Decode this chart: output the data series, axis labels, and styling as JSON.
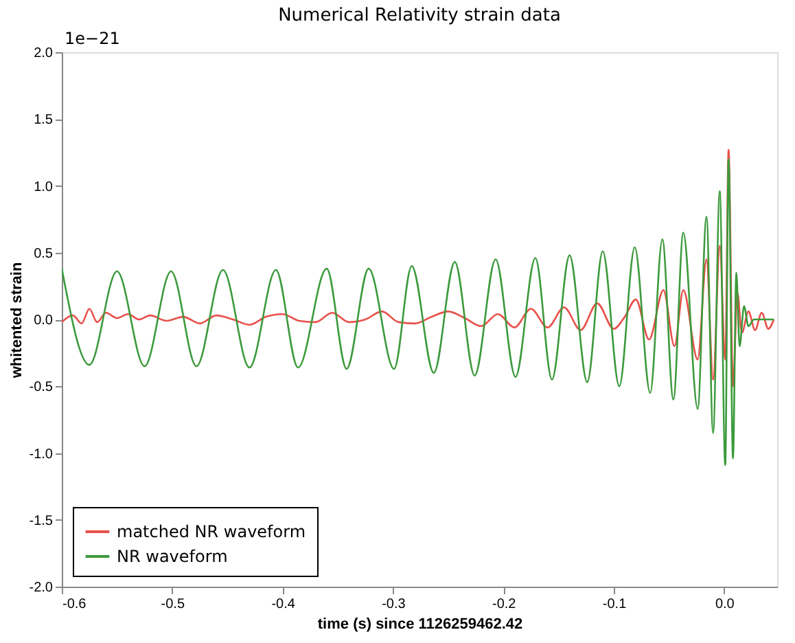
{
  "chart_data": {
    "type": "line",
    "title": "Numerical Relativity strain data",
    "xlabel": "time (s) since 1126259462.42",
    "ylabel": "whitented strain",
    "annotations": [
      "1e−21"
    ],
    "series": [
      {
        "name": "matched NR waveform",
        "color": "#e8504a",
        "x": [
          -0.6,
          -0.59,
          -0.582,
          -0.575,
          -0.568,
          -0.56,
          -0.55,
          -0.54,
          -0.53,
          -0.52,
          -0.505,
          -0.49,
          -0.475,
          -0.46,
          -0.445,
          -0.43,
          -0.415,
          -0.4,
          -0.385,
          -0.37,
          -0.355,
          -0.34,
          -0.325,
          -0.31,
          -0.295,
          -0.28,
          -0.265,
          -0.25,
          -0.235,
          -0.22,
          -0.205,
          -0.19,
          -0.175,
          -0.16,
          -0.145,
          -0.13,
          -0.115,
          -0.1,
          -0.09,
          -0.08,
          -0.068,
          -0.055,
          -0.045,
          -0.037,
          -0.024,
          -0.016,
          -0.01,
          -0.004,
          0.001,
          0.004,
          0.008,
          0.012,
          0.016,
          0.022,
          0.028,
          0.034,
          0.04,
          0.045
        ],
        "values": [
          -0.02,
          0.03,
          -0.03,
          0.08,
          -0.02,
          0.05,
          0.01,
          0.04,
          0.0,
          0.03,
          -0.01,
          0.02,
          -0.03,
          0.03,
          0.0,
          -0.04,
          0.02,
          0.04,
          -0.01,
          -0.02,
          0.05,
          -0.02,
          0.0,
          0.06,
          -0.02,
          -0.03,
          0.02,
          0.06,
          0.01,
          -0.05,
          0.04,
          -0.06,
          0.08,
          -0.06,
          0.09,
          -0.08,
          0.12,
          -0.07,
          0.02,
          0.15,
          -0.15,
          0.22,
          -0.2,
          0.22,
          -0.3,
          0.45,
          -0.45,
          0.55,
          -0.3,
          1.27,
          -0.5,
          0.2,
          -0.1,
          0.06,
          -0.08,
          0.05,
          -0.07,
          0.0
        ]
      },
      {
        "name": "NR waveform",
        "color": "#3c9a3c",
        "x": [
          -0.6,
          -0.575,
          -0.55,
          -0.525,
          -0.501,
          -0.478,
          -0.454,
          -0.43,
          -0.406,
          -0.386,
          -0.36,
          -0.342,
          -0.322,
          -0.299,
          -0.283,
          -0.263,
          -0.244,
          -0.226,
          -0.207,
          -0.189,
          -0.171,
          -0.156,
          -0.14,
          -0.124,
          -0.11,
          -0.095,
          -0.081,
          -0.067,
          -0.056,
          -0.046,
          -0.037,
          -0.024,
          -0.016,
          -0.01,
          -0.004,
          0.001,
          0.004,
          0.008,
          0.011,
          0.014,
          0.018,
          0.022,
          0.027,
          0.045
        ],
        "values": [
          0.38,
          -0.34,
          0.36,
          -0.35,
          0.36,
          -0.35,
          0.37,
          -0.36,
          0.37,
          -0.36,
          0.38,
          -0.37,
          0.38,
          -0.37,
          0.4,
          -0.4,
          0.43,
          -0.42,
          0.45,
          -0.43,
          0.46,
          -0.45,
          0.48,
          -0.47,
          0.51,
          -0.5,
          0.54,
          -0.55,
          0.6,
          -0.6,
          0.65,
          -0.67,
          0.77,
          -0.85,
          0.96,
          -1.09,
          1.2,
          -1.04,
          0.35,
          -0.2,
          0.1,
          -0.05,
          0.0,
          0.0
        ]
      }
    ],
    "xlim": [
      -0.6,
      0.048
    ],
    "xticks": [
      {
        "value": -0.6,
        "label": "-0.6"
      },
      {
        "value": -0.5,
        "label": "-0.5"
      },
      {
        "value": -0.4,
        "label": "-0.4"
      },
      {
        "value": -0.3,
        "label": "-0.3"
      },
      {
        "value": -0.2,
        "label": "-0.2"
      },
      {
        "value": -0.1,
        "label": "-0.1"
      },
      {
        "value": 0,
        "label": "0.0"
      }
    ],
    "ylim": [
      -2,
      2
    ],
    "yticks": [
      {
        "value": -2,
        "label": "-2.0"
      },
      {
        "value": -1.5,
        "label": "-1.5"
      },
      {
        "value": -1,
        "label": "-1.0"
      },
      {
        "value": -0.5,
        "label": "-0.5"
      },
      {
        "value": 0,
        "label": "0.0"
      },
      {
        "value": 0.5,
        "label": "0.5"
      },
      {
        "value": 1,
        "label": "1.0"
      },
      {
        "value": 1.5,
        "label": "1.5"
      },
      {
        "value": 2,
        "label": "2.0"
      }
    ],
    "grid": false,
    "legend": "bottom left",
    "marker": "none",
    "line_style": "solid"
  }
}
